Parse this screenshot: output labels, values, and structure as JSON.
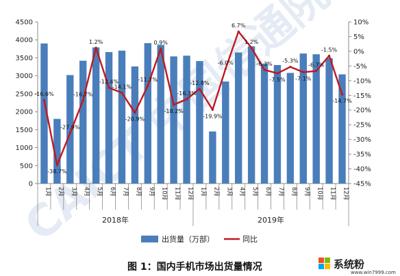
{
  "chart_data": {
    "type": "bar+line",
    "caption": "图 1：国内手机市场出货量情况",
    "years": [
      "2018年",
      "2019年"
    ],
    "categories": [
      "1月",
      "2月",
      "3月",
      "4月",
      "5月",
      "6月",
      "7月",
      "8月",
      "9月",
      "10月",
      "11月",
      "12月",
      "1月",
      "2月",
      "3月",
      "4月",
      "5月",
      "6月",
      "7月",
      "8月",
      "9月",
      "10月",
      "11月",
      "12月"
    ],
    "series": [
      {
        "name": "出货量（万部）",
        "kind": "bar",
        "axis": "left",
        "color": "#4a7ebb",
        "values": [
          3900,
          1800,
          3020,
          3420,
          3790,
          3660,
          3700,
          3260,
          3910,
          3860,
          3540,
          3560,
          3410,
          1450,
          2840,
          3650,
          3820,
          3340,
          3300,
          3080,
          3620,
          3600,
          3490,
          3040
        ]
      },
      {
        "name": "同比",
        "kind": "line",
        "axis": "right",
        "color": "#c0181e",
        "values": [
          -16.6,
          -38.7,
          -27.9,
          -16.7,
          1.2,
          -12.4,
          -14.1,
          -20.9,
          -11.7,
          0.9,
          -18.2,
          -16.3,
          -12.8,
          -19.9,
          -6.0,
          6.7,
          1.2,
          -6.3,
          -7.5,
          -5.3,
          -7.1,
          -6.7,
          -1.5,
          -14.7
        ],
        "labels": [
          "-16.6%",
          "-38.7%",
          "-27.9%",
          "-16.7%",
          "1.2%",
          "-12.4%",
          "-14.1%",
          "-20.9%",
          "-11.7%",
          "0.9%",
          "-18.2%",
          "-16.3%",
          "-12.8%",
          "-19.9%",
          "-6.0%",
          "6.7%",
          "1.2%",
          "-6.3%",
          "-7.5%",
          "-5.3%",
          "-7.1%",
          "-6.7%",
          "-1.5%",
          "-14.7%"
        ]
      }
    ],
    "y_left": {
      "min": 0,
      "max": 4500,
      "step": 500,
      "ticks": [
        "0",
        "500",
        "1000",
        "1500",
        "2000",
        "2500",
        "3000",
        "3500",
        "4000",
        "4500"
      ]
    },
    "y_right": {
      "min": -45,
      "max": 10,
      "step": 5,
      "ticks": [
        "10%",
        "5%",
        "0%",
        "-5%",
        "-10%",
        "-15%",
        "-20%",
        "-25%",
        "-30%",
        "-35%",
        "-40%",
        "-45%"
      ]
    },
    "grid": false,
    "legend_position": "bottom"
  },
  "watermark": {
    "text": "CAICT 中国信通院"
  },
  "brand": {
    "name": "系统粉",
    "url": "www.win7999.com",
    "colors": [
      "#f25022",
      "#7fba00",
      "#00a4ef",
      "#ffb900"
    ]
  }
}
